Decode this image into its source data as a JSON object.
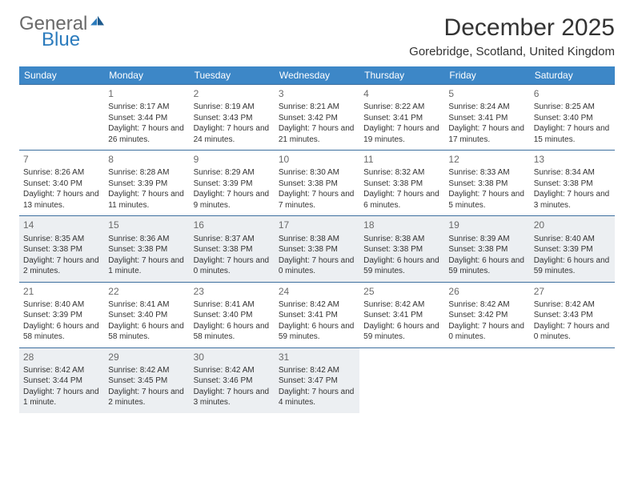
{
  "brand": {
    "word1": "General",
    "word2": "Blue",
    "color_general": "#6a6a6a",
    "color_blue": "#2b7bbd",
    "icon_color": "#2b7bbd"
  },
  "header": {
    "title": "December 2025",
    "location": "Gorebridge, Scotland, United Kingdom",
    "title_fontsize": 30,
    "location_fontsize": 15
  },
  "colors": {
    "header_bg": "#3d87c7",
    "header_text": "#ffffff",
    "cell_border": "#3d6f9f",
    "shade_bg": "#eceff2",
    "text": "#333333",
    "daynum": "#6a6a6a"
  },
  "dow": [
    "Sunday",
    "Monday",
    "Tuesday",
    "Wednesday",
    "Thursday",
    "Friday",
    "Saturday"
  ],
  "labels": {
    "sunrise": "Sunrise:",
    "sunset": "Sunset:",
    "daylight": "Daylight:"
  },
  "layout": {
    "first_dow_index": 1,
    "days_in_month": 31,
    "shaded_rows": [
      2,
      4
    ]
  },
  "days": {
    "1": {
      "sunrise": "8:17 AM",
      "sunset": "3:44 PM",
      "daylight": "7 hours and 26 minutes."
    },
    "2": {
      "sunrise": "8:19 AM",
      "sunset": "3:43 PM",
      "daylight": "7 hours and 24 minutes."
    },
    "3": {
      "sunrise": "8:21 AM",
      "sunset": "3:42 PM",
      "daylight": "7 hours and 21 minutes."
    },
    "4": {
      "sunrise": "8:22 AM",
      "sunset": "3:41 PM",
      "daylight": "7 hours and 19 minutes."
    },
    "5": {
      "sunrise": "8:24 AM",
      "sunset": "3:41 PM",
      "daylight": "7 hours and 17 minutes."
    },
    "6": {
      "sunrise": "8:25 AM",
      "sunset": "3:40 PM",
      "daylight": "7 hours and 15 minutes."
    },
    "7": {
      "sunrise": "8:26 AM",
      "sunset": "3:40 PM",
      "daylight": "7 hours and 13 minutes."
    },
    "8": {
      "sunrise": "8:28 AM",
      "sunset": "3:39 PM",
      "daylight": "7 hours and 11 minutes."
    },
    "9": {
      "sunrise": "8:29 AM",
      "sunset": "3:39 PM",
      "daylight": "7 hours and 9 minutes."
    },
    "10": {
      "sunrise": "8:30 AM",
      "sunset": "3:38 PM",
      "daylight": "7 hours and 7 minutes."
    },
    "11": {
      "sunrise": "8:32 AM",
      "sunset": "3:38 PM",
      "daylight": "7 hours and 6 minutes."
    },
    "12": {
      "sunrise": "8:33 AM",
      "sunset": "3:38 PM",
      "daylight": "7 hours and 5 minutes."
    },
    "13": {
      "sunrise": "8:34 AM",
      "sunset": "3:38 PM",
      "daylight": "7 hours and 3 minutes."
    },
    "14": {
      "sunrise": "8:35 AM",
      "sunset": "3:38 PM",
      "daylight": "7 hours and 2 minutes."
    },
    "15": {
      "sunrise": "8:36 AM",
      "sunset": "3:38 PM",
      "daylight": "7 hours and 1 minute."
    },
    "16": {
      "sunrise": "8:37 AM",
      "sunset": "3:38 PM",
      "daylight": "7 hours and 0 minutes."
    },
    "17": {
      "sunrise": "8:38 AM",
      "sunset": "3:38 PM",
      "daylight": "7 hours and 0 minutes."
    },
    "18": {
      "sunrise": "8:38 AM",
      "sunset": "3:38 PM",
      "daylight": "6 hours and 59 minutes."
    },
    "19": {
      "sunrise": "8:39 AM",
      "sunset": "3:38 PM",
      "daylight": "6 hours and 59 minutes."
    },
    "20": {
      "sunrise": "8:40 AM",
      "sunset": "3:39 PM",
      "daylight": "6 hours and 59 minutes."
    },
    "21": {
      "sunrise": "8:40 AM",
      "sunset": "3:39 PM",
      "daylight": "6 hours and 58 minutes."
    },
    "22": {
      "sunrise": "8:41 AM",
      "sunset": "3:40 PM",
      "daylight": "6 hours and 58 minutes."
    },
    "23": {
      "sunrise": "8:41 AM",
      "sunset": "3:40 PM",
      "daylight": "6 hours and 58 minutes."
    },
    "24": {
      "sunrise": "8:42 AM",
      "sunset": "3:41 PM",
      "daylight": "6 hours and 59 minutes."
    },
    "25": {
      "sunrise": "8:42 AM",
      "sunset": "3:41 PM",
      "daylight": "6 hours and 59 minutes."
    },
    "26": {
      "sunrise": "8:42 AM",
      "sunset": "3:42 PM",
      "daylight": "7 hours and 0 minutes."
    },
    "27": {
      "sunrise": "8:42 AM",
      "sunset": "3:43 PM",
      "daylight": "7 hours and 0 minutes."
    },
    "28": {
      "sunrise": "8:42 AM",
      "sunset": "3:44 PM",
      "daylight": "7 hours and 1 minute."
    },
    "29": {
      "sunrise": "8:42 AM",
      "sunset": "3:45 PM",
      "daylight": "7 hours and 2 minutes."
    },
    "30": {
      "sunrise": "8:42 AM",
      "sunset": "3:46 PM",
      "daylight": "7 hours and 3 minutes."
    },
    "31": {
      "sunrise": "8:42 AM",
      "sunset": "3:47 PM",
      "daylight": "7 hours and 4 minutes."
    }
  }
}
